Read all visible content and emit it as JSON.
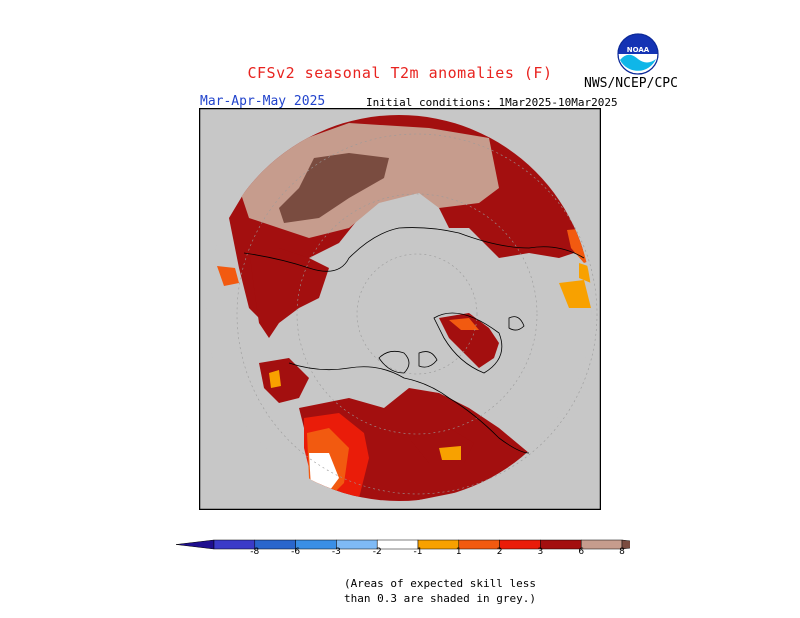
{
  "title": "CFSv2 seasonal T2m anomalies (F)",
  "period": "Mar-Apr-May 2025",
  "initial_conditions": "Initial conditions: 1Mar2025-10Mar2025",
  "organization": "NWS/NCEP/CPC",
  "logo_text": "NOAA",
  "colorbar": {
    "labels": [
      "-8",
      "-6",
      "-3",
      "-2",
      "-1",
      "1",
      "2",
      "3",
      "6",
      "8"
    ],
    "colors": {
      "below_-8": "#1f0f8f",
      "-8_-6": "#3b3bc8",
      "-6_-3": "#2a66cc",
      "-3_-2": "#3a8fe6",
      "-2_-1": "#7fbaf5",
      "-1_1": "#ffffff",
      "1_2": "#f8a100",
      "2_3": "#f25a10",
      "3_6": "#ea1c09",
      "6_8": "#a30f0f",
      "8_10": "#c69c8d",
      "above_10": "#7a4c40"
    }
  },
  "note": {
    "line1": "(Areas of expected skill less",
    "line2": "than 0.3 are shaded in grey.)"
  },
  "map_colors": {
    "grey": "#c7c7c7",
    "dark_red": "#a30f0f",
    "tan": "#c69c8d",
    "brown": "#7a4c40",
    "red": "#ea1c09",
    "orange_red": "#f25a10",
    "orange": "#f8a100",
    "white": "#ffffff"
  }
}
